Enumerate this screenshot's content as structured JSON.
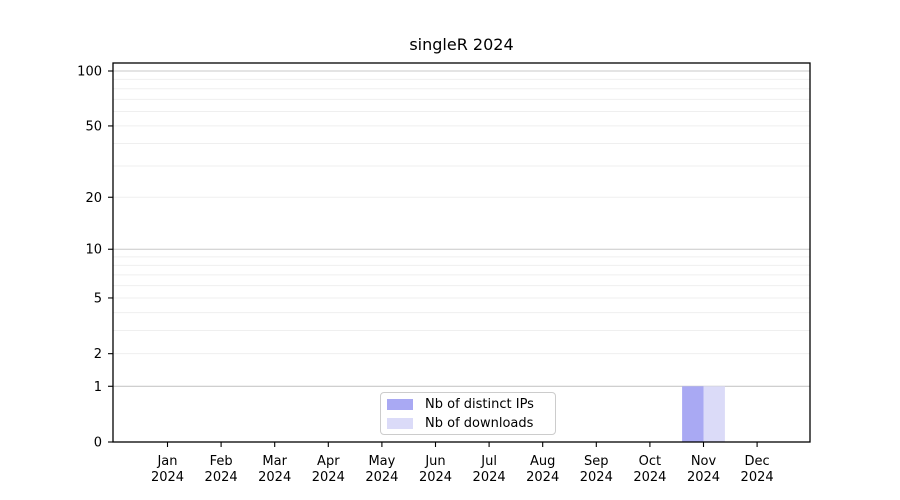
{
  "chart_data": {
    "type": "bar",
    "title": "singleR 2024",
    "categories": [
      "Jan",
      "Feb",
      "Mar",
      "Apr",
      "May",
      "Jun",
      "Jul",
      "Aug",
      "Sep",
      "Oct",
      "Nov",
      "Dec"
    ],
    "year_label": "2024",
    "series": [
      {
        "name": "Nb of distinct IPs",
        "color": "#a9a9f3",
        "values": [
          0,
          0,
          0,
          0,
          0,
          0,
          0,
          0,
          0,
          0,
          1,
          0
        ]
      },
      {
        "name": "Nb of downloads",
        "color": "#dbdbf8",
        "values": [
          0,
          0,
          0,
          0,
          0,
          0,
          0,
          0,
          0,
          0,
          1,
          0
        ]
      }
    ],
    "y_axis": {
      "scale": "log1p",
      "range": [
        0,
        100
      ],
      "ticks": [
        0,
        1,
        2,
        5,
        10,
        20,
        50,
        100
      ],
      "major_gridlines": [
        1,
        10,
        100
      ],
      "minor_gridlines": [
        2,
        3,
        4,
        5,
        6,
        7,
        8,
        9,
        20,
        30,
        40,
        50,
        60,
        70,
        80,
        90
      ]
    },
    "legend": {
      "position": "bottom-center"
    },
    "grid": true,
    "colors": {
      "axis": "#000000",
      "text": "#000000",
      "major_grid": "#c8c8c8",
      "minor_grid": "#efefef",
      "background": "#ffffff"
    }
  }
}
